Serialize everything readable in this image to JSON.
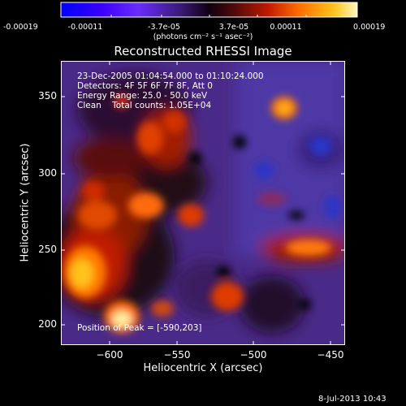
{
  "colorbar": {
    "tick_labels": [
      "-0.00019",
      "-0.00011",
      "-3.7e-05",
      "3.7e-05",
      "0.00011",
      "0.00019"
    ],
    "units_label": "(photons cm⁻² s⁻¹ asec⁻²)",
    "colors": [
      "#0000ff",
      "#3a00ff",
      "#6a2cff",
      "#3a1b7a",
      "#110011",
      "#4a0a0a",
      "#c21a00",
      "#ff6a00",
      "#ffc21a",
      "#fff8c0"
    ]
  },
  "plot": {
    "title": "Reconstructed RHESSI Image",
    "x_axis": {
      "label": "Heliocentric X (arcsec)",
      "range": [
        -633,
        -440
      ],
      "ticks": [
        -600,
        -550,
        -500,
        -450
      ],
      "tick_labels": [
        "−600",
        "−550",
        "−500",
        "−450"
      ]
    },
    "y_axis": {
      "label": "Heliocentric Y (arcsec)",
      "range": [
        188,
        380
      ],
      "ticks": [
        200,
        250,
        300,
        350
      ],
      "tick_labels": [
        "200",
        "250",
        "300",
        "350"
      ]
    },
    "info_lines": [
      "23-Dec-2005 01:04:54.000 to 01:10:24.000",
      "Detectors: 4F 5F 6F 7F 8F, Att 0",
      "Energy Range: 25.0 - 50.0 keV",
      "Clean    Total counts: 1.05E+04"
    ],
    "peak_label": "Position of Peak = [-590,203]"
  },
  "footer": {
    "timestamp": "8-Jul-2013 10:43"
  }
}
